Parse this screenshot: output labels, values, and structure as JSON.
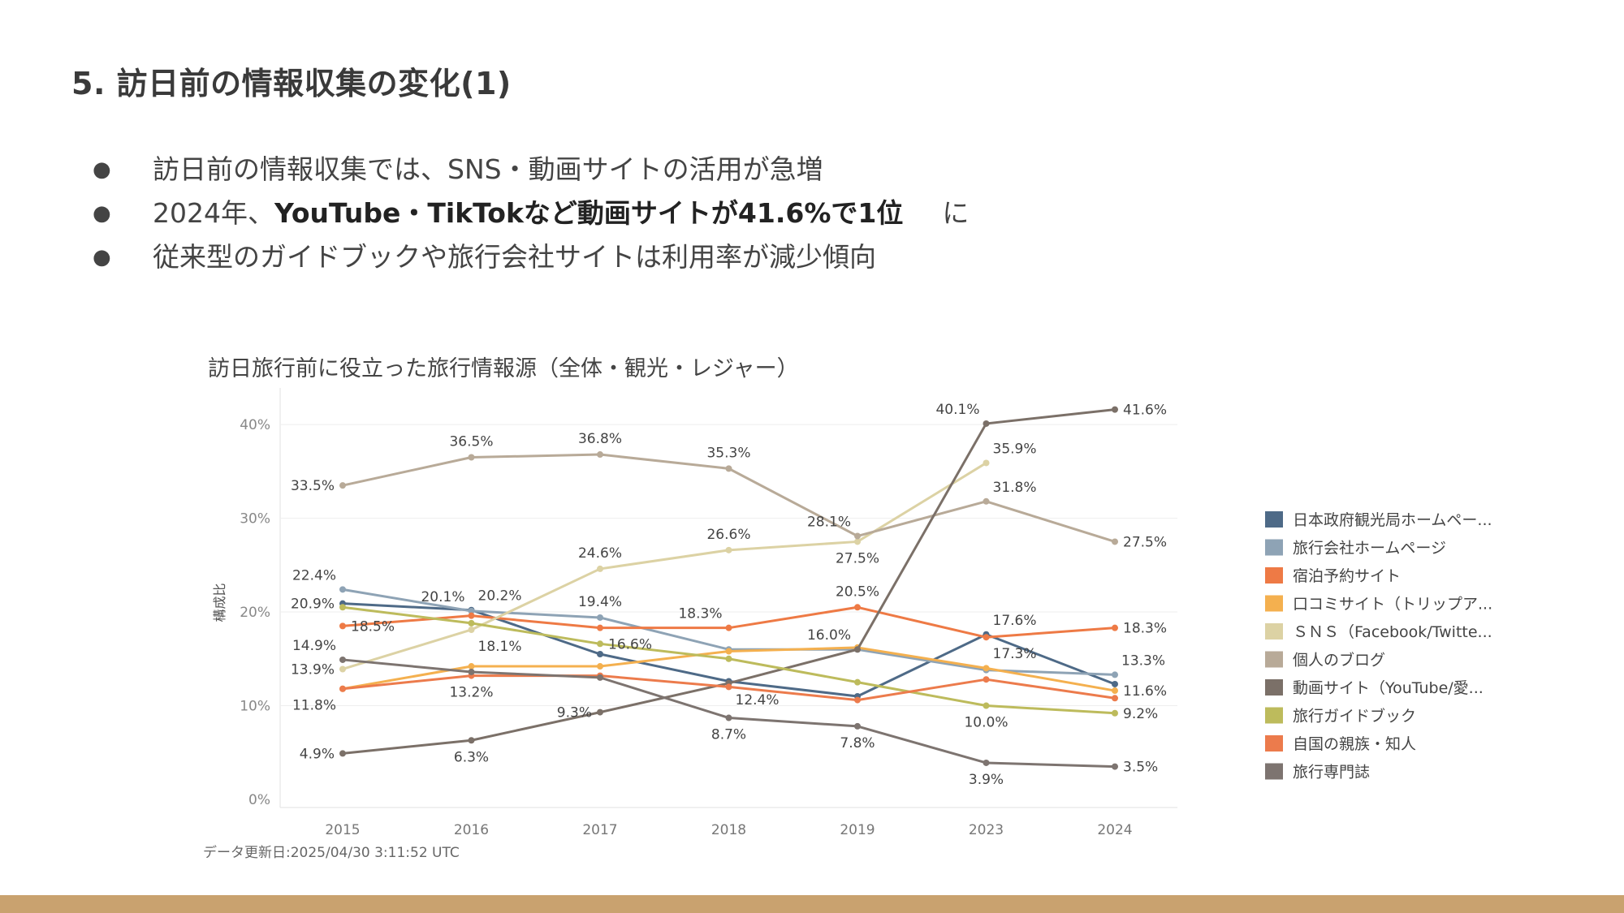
{
  "slide": {
    "title": "5. 訪日前の情報収集の変化(1)",
    "bullets": [
      {
        "text": "訪日前の情報収集では、SNS・動画サイトの活用が急増"
      },
      {
        "prefix": "2024年、",
        "bold": "YouTube・TikTokなど動画サイトが41.6%で1位",
        "tail": "に"
      },
      {
        "text": "従来型のガイドブックや旅行会社サイトは利用率が減少傾向"
      }
    ]
  },
  "colors": {
    "title": "#3a3a3a",
    "grid": "#ececec",
    "footer_bar": "#c9a26f"
  },
  "chart_data": {
    "type": "line",
    "title": "訪日旅行前に役立った旅行情報源（全体・観光・レジャー）",
    "ylabel": "構成比",
    "xlabel": "",
    "ylim": [
      0,
      42
    ],
    "yticks": [
      "0%",
      "10%",
      "20%",
      "30%",
      "40%"
    ],
    "ytick_values": [
      0,
      10,
      20,
      30,
      40
    ],
    "categories": [
      "2015",
      "2016",
      "2017",
      "2018",
      "2019",
      "2023",
      "2024"
    ],
    "legend_position": "right",
    "footnote": "データ更新日:2025/04/30 3:11:52 UTC",
    "series": [
      {
        "name": "日本政府観光局ホームペー...",
        "color": "#4e6a87",
        "values": [
          20.9,
          20.2,
          15.5,
          12.6,
          11.0,
          17.6,
          12.3
        ]
      },
      {
        "name": "旅行会社ホームページ",
        "color": "#8ea3b5",
        "values": [
          22.4,
          20.1,
          19.4,
          16.0,
          16.0,
          13.8,
          13.3
        ]
      },
      {
        "name": "宿泊予約サイト",
        "color": "#ee7a45",
        "values": [
          18.5,
          19.6,
          18.3,
          18.3,
          20.5,
          17.3,
          18.3
        ]
      },
      {
        "name": "口コミサイト（トリップア...",
        "color": "#f4b04f",
        "values": [
          11.8,
          14.2,
          14.2,
          15.8,
          16.2,
          14.0,
          11.6
        ]
      },
      {
        "name": "ＳＮＳ（Facebook/Twitte...",
        "color": "#dcd2a4",
        "values": [
          13.9,
          18.1,
          24.6,
          26.6,
          27.5,
          35.9,
          null
        ]
      },
      {
        "name": "個人のブログ",
        "color": "#b8aa98",
        "values": [
          33.5,
          36.5,
          36.8,
          35.3,
          28.1,
          31.8,
          27.5
        ]
      },
      {
        "name": "動画サイト（YouTube/愛...",
        "color": "#7b7068",
        "values": [
          4.9,
          6.3,
          9.3,
          12.4,
          16.0,
          40.1,
          41.6
        ]
      },
      {
        "name": "旅行ガイドブック",
        "color": "#bdbb5c",
        "values": [
          20.5,
          18.8,
          16.6,
          15.0,
          12.5,
          10.0,
          9.2
        ]
      },
      {
        "name": "自国の親族・知人",
        "color": "#ec7b4c",
        "values": [
          11.8,
          13.2,
          13.2,
          12.0,
          10.6,
          12.8,
          10.8
        ]
      },
      {
        "name": "旅行専門誌",
        "color": "#7d7470",
        "values": [
          14.9,
          13.6,
          13.0,
          8.7,
          7.8,
          3.9,
          3.5
        ]
      }
    ],
    "data_labels": [
      {
        "series": 5,
        "index": 0,
        "text": "33.5%",
        "pos": "left"
      },
      {
        "series": 5,
        "index": 1,
        "text": "36.5%",
        "pos": "above"
      },
      {
        "series": 5,
        "index": 2,
        "text": "36.8%",
        "pos": "above"
      },
      {
        "series": 5,
        "index": 3,
        "text": "35.3%",
        "pos": "above"
      },
      {
        "series": 5,
        "index": 4,
        "text": "28.1%",
        "pos": "above-left"
      },
      {
        "series": 5,
        "index": 5,
        "text": "31.8%",
        "pos": "above-right"
      },
      {
        "series": 5,
        "index": 6,
        "text": "27.5%",
        "pos": "right"
      },
      {
        "series": 6,
        "index": 5,
        "text": "40.1%",
        "pos": "above-left"
      },
      {
        "series": 6,
        "index": 6,
        "text": "41.6%",
        "pos": "right"
      },
      {
        "series": 4,
        "index": 5,
        "text": "35.9%",
        "pos": "above-right"
      },
      {
        "series": 4,
        "index": 2,
        "text": "24.6%",
        "pos": "above"
      },
      {
        "series": 4,
        "index": 3,
        "text": "26.6%",
        "pos": "above"
      },
      {
        "series": 4,
        "index": 4,
        "text": "27.5%",
        "pos": "below"
      },
      {
        "series": 1,
        "index": 0,
        "text": "22.4%",
        "pos": "above-left"
      },
      {
        "series": 0,
        "index": 0,
        "text": "20.9%",
        "pos": "left"
      },
      {
        "series": 1,
        "index": 1,
        "text": "20.1%",
        "pos": "above-left"
      },
      {
        "series": 0,
        "index": 1,
        "text": "20.2%",
        "pos": "above-right"
      },
      {
        "series": 1,
        "index": 2,
        "text": "19.4%",
        "pos": "above"
      },
      {
        "series": 2,
        "index": 3,
        "text": "18.3%",
        "pos": "above-left"
      },
      {
        "series": 2,
        "index": 4,
        "text": "20.5%",
        "pos": "above"
      },
      {
        "series": 1,
        "index": 4,
        "text": "16.0%",
        "pos": "above-left"
      },
      {
        "series": 0,
        "index": 5,
        "text": "17.6%",
        "pos": "above-right"
      },
      {
        "series": 2,
        "index": 5,
        "text": "17.3%",
        "pos": "below-right"
      },
      {
        "series": 2,
        "index": 6,
        "text": "18.3%",
        "pos": "right"
      },
      {
        "series": 1,
        "index": 6,
        "text": "13.3%",
        "pos": "above-right"
      },
      {
        "series": 3,
        "index": 6,
        "text": "11.6%",
        "pos": "right"
      },
      {
        "series": 7,
        "index": 6,
        "text": "9.2%",
        "pos": "right"
      },
      {
        "series": 7,
        "index": 5,
        "text": "10.0%",
        "pos": "below"
      },
      {
        "series": 2,
        "index": 0,
        "text": "18.5%",
        "pos": "right"
      },
      {
        "series": 9,
        "index": 0,
        "text": "14.9%",
        "pos": "above-left"
      },
      {
        "series": 4,
        "index": 0,
        "text": "13.9%",
        "pos": "left"
      },
      {
        "series": 3,
        "index": 0,
        "text": "11.8%",
        "pos": "below-left"
      },
      {
        "series": 4,
        "index": 1,
        "text": "18.1%",
        "pos": "below-right"
      },
      {
        "series": 8,
        "index": 1,
        "text": "13.2%",
        "pos": "below"
      },
      {
        "series": 7,
        "index": 2,
        "text": "16.6%",
        "pos": "right"
      },
      {
        "series": 6,
        "index": 2,
        "text": "9.3%",
        "pos": "left"
      },
      {
        "series": 6,
        "index": 3,
        "text": "12.4%",
        "pos": "below-right"
      },
      {
        "series": 9,
        "index": 3,
        "text": "8.7%",
        "pos": "below"
      },
      {
        "series": 9,
        "index": 4,
        "text": "7.8%",
        "pos": "below"
      },
      {
        "series": 9,
        "index": 5,
        "text": "3.9%",
        "pos": "below"
      },
      {
        "series": 9,
        "index": 6,
        "text": "3.5%",
        "pos": "right"
      },
      {
        "series": 6,
        "index": 0,
        "text": "4.9%",
        "pos": "left"
      },
      {
        "series": 6,
        "index": 1,
        "text": "6.3%",
        "pos": "below"
      }
    ]
  }
}
